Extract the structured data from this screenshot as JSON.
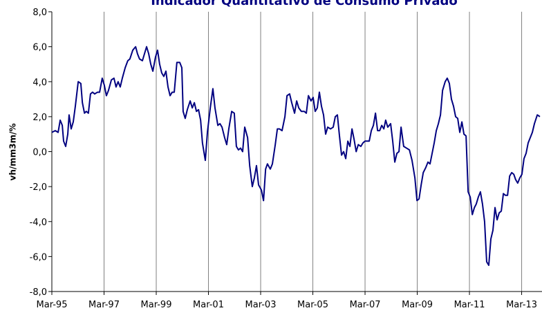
{
  "chart_data": {
    "type": "line",
    "title": "Indicador Quantitativo de Consumo Privado",
    "y_label": "vh/mm3m/%",
    "x": [
      1995.17,
      1995.3,
      1995.41,
      1995.49,
      1995.57,
      1995.62,
      1995.7,
      1995.78,
      1995.83,
      1995.91,
      1995.99,
      1996.07,
      1996.18,
      1996.28,
      1996.34,
      1996.42,
      1996.49,
      1996.57,
      1996.65,
      1996.73,
      1996.81,
      1996.92,
      1997.0,
      1997.1,
      1997.18,
      1997.26,
      1997.34,
      1997.45,
      1997.55,
      1997.63,
      1997.71,
      1997.79,
      1997.87,
      1997.98,
      1998.08,
      1998.16,
      1998.27,
      1998.38,
      1998.45,
      1998.53,
      1998.64,
      1998.72,
      1998.8,
      1998.88,
      1998.96,
      1999.04,
      1999.14,
      1999.22,
      1999.3,
      1999.38,
      1999.46,
      1999.54,
      1999.62,
      1999.7,
      1999.78,
      1999.86,
      1999.96,
      2000.07,
      2000.15,
      2000.2,
      2000.28,
      2000.36,
      2000.47,
      2000.55,
      2000.63,
      2000.71,
      2000.79,
      2000.87,
      2000.94,
      2001.05,
      2001.13,
      2001.24,
      2001.34,
      2001.42,
      2001.53,
      2001.61,
      2001.69,
      2001.79,
      2001.87,
      2001.95,
      2002.06,
      2002.16,
      2002.24,
      2002.32,
      2002.4,
      2002.48,
      2002.56,
      2002.67,
      2002.75,
      2002.85,
      2002.93,
      2003.01,
      2003.09,
      2003.2,
      2003.28,
      2003.36,
      2003.43,
      2003.54,
      2003.62,
      2003.73,
      2003.81,
      2003.89,
      2003.99,
      2004.1,
      2004.18,
      2004.28,
      2004.36,
      2004.47,
      2004.55,
      2004.63,
      2004.73,
      2004.84,
      2004.92,
      2005.0,
      2005.1,
      2005.18,
      2005.26,
      2005.34,
      2005.42,
      2005.5,
      2005.58,
      2005.66,
      2005.74,
      2005.85,
      2005.95,
      2006.03,
      2006.11,
      2006.19,
      2006.27,
      2006.35,
      2006.43,
      2006.51,
      2006.59,
      2006.67,
      2006.75,
      2006.83,
      2006.91,
      2007.01,
      2007.09,
      2007.17,
      2007.25,
      2007.33,
      2007.41,
      2007.49,
      2007.57,
      2007.65,
      2007.73,
      2007.81,
      2007.89,
      2007.96,
      2008.04,
      2008.15,
      2008.23,
      2008.31,
      2008.39,
      2008.47,
      2008.55,
      2008.65,
      2008.76,
      2008.87,
      2008.97,
      2009.08,
      2009.16,
      2009.24,
      2009.32,
      2009.4,
      2009.5,
      2009.58,
      2009.66,
      2009.74,
      2009.82,
      2009.9,
      2009.98,
      2010.06,
      2010.14,
      2010.24,
      2010.32,
      2010.4,
      2010.48,
      2010.56,
      2010.64,
      2010.72,
      2010.8,
      2010.88,
      2010.96,
      2011.04,
      2011.12,
      2011.2,
      2011.28,
      2011.36,
      2011.43,
      2011.51,
      2011.59,
      2011.67,
      2011.75,
      2011.83,
      2011.91,
      2011.99,
      2012.07,
      2012.15,
      2012.23,
      2012.31,
      2012.39,
      2012.47,
      2012.55,
      2012.63,
      2012.71,
      2012.79,
      2012.87,
      2012.94,
      2013.02,
      2013.1,
      2013.18,
      2013.26,
      2013.34,
      2013.42,
      2013.5,
      2013.58,
      2013.66,
      2013.77,
      2013.87
    ],
    "series": [
      {
        "color": "#000080",
        "values": [
          1.1,
          1.2,
          1.1,
          1.8,
          1.5,
          0.6,
          0.3,
          1.0,
          2.1,
          1.3,
          1.7,
          2.6,
          4.0,
          3.9,
          2.8,
          2.2,
          2.3,
          2.2,
          3.3,
          3.4,
          3.3,
          3.4,
          3.4,
          4.2,
          3.8,
          3.2,
          3.5,
          4.1,
          4.2,
          3.7,
          4.0,
          3.7,
          4.2,
          4.8,
          5.2,
          5.3,
          5.8,
          6.0,
          5.6,
          5.3,
          5.2,
          5.6,
          6.0,
          5.6,
          5.0,
          4.6,
          5.4,
          5.8,
          5.0,
          4.5,
          4.3,
          4.6,
          3.7,
          3.2,
          3.4,
          3.4,
          5.1,
          5.1,
          4.8,
          2.3,
          1.9,
          2.4,
          2.9,
          2.5,
          2.8,
          2.3,
          2.4,
          1.8,
          0.5,
          -0.5,
          1.1,
          2.5,
          3.6,
          2.5,
          1.5,
          1.6,
          1.4,
          0.8,
          0.4,
          1.3,
          2.3,
          2.2,
          0.3,
          0.1,
          0.2,
          0.0,
          1.4,
          0.8,
          -0.8,
          -2.0,
          -1.5,
          -0.8,
          -1.9,
          -2.2,
          -2.8,
          -1.0,
          -0.7,
          -1.0,
          -0.7,
          0.4,
          1.3,
          1.3,
          1.2,
          2.0,
          3.2,
          3.3,
          2.8,
          2.2,
          2.9,
          2.5,
          2.3,
          2.3,
          2.2,
          3.2,
          2.9,
          3.1,
          2.3,
          2.5,
          3.4,
          2.6,
          2.1,
          1.0,
          1.4,
          1.3,
          1.4,
          2.0,
          2.1,
          0.9,
          -0.2,
          0.0,
          -0.4,
          0.6,
          0.3,
          1.3,
          0.7,
          0.0,
          0.4,
          0.3,
          0.5,
          0.6,
          0.6,
          0.6,
          1.2,
          1.5,
          2.2,
          1.2,
          1.2,
          1.5,
          1.3,
          1.8,
          1.4,
          1.6,
          0.6,
          -0.6,
          -0.1,
          0.0,
          1.4,
          0.3,
          0.2,
          0.1,
          -0.5,
          -1.5,
          -2.8,
          -2.7,
          -1.9,
          -1.2,
          -0.9,
          -0.6,
          -0.7,
          -0.1,
          0.5,
          1.2,
          1.6,
          2.1,
          3.5,
          4.0,
          4.2,
          3.9,
          3.0,
          2.6,
          2.0,
          1.9,
          1.1,
          1.7,
          1.0,
          0.9,
          -2.3,
          -2.6,
          -3.6,
          -3.2,
          -3.0,
          -2.6,
          -2.3,
          -3.0,
          -4.0,
          -6.3,
          -6.5,
          -5.0,
          -4.5,
          -3.2,
          -3.9,
          -3.5,
          -3.4,
          -2.4,
          -2.5,
          -2.5,
          -1.4,
          -1.2,
          -1.3,
          -1.6,
          -1.8,
          -1.5,
          -1.3,
          -0.4,
          -0.1,
          0.5,
          0.8,
          1.1,
          1.6,
          2.1,
          2.0
        ]
      }
    ],
    "xlim": [
      1995.17,
      2013.95
    ],
    "xticks": [
      {
        "value": 1995.17,
        "label": "Mar-95"
      },
      {
        "value": 1997.17,
        "label": "Mar-97"
      },
      {
        "value": 1999.17,
        "label": "Mar-99"
      },
      {
        "value": 2001.17,
        "label": "Mar-01"
      },
      {
        "value": 2003.17,
        "label": "Mar-03"
      },
      {
        "value": 2005.17,
        "label": "Mar-05"
      },
      {
        "value": 2007.17,
        "label": "Mar-07"
      },
      {
        "value": 2009.17,
        "label": "Mar-09"
      },
      {
        "value": 2011.17,
        "label": "Mar-11"
      },
      {
        "value": 2013.17,
        "label": "Mar-13"
      }
    ],
    "ylim": [
      -8,
      8
    ],
    "yticks": [
      {
        "value": -8,
        "label": "-8,0"
      },
      {
        "value": -6,
        "label": "-6,0"
      },
      {
        "value": -4,
        "label": "-4,0"
      },
      {
        "value": -2,
        "label": "-2,0"
      },
      {
        "value": 0,
        "label": "0,0"
      },
      {
        "value": 2,
        "label": "2,0"
      },
      {
        "value": 4,
        "label": "4,0"
      },
      {
        "value": 6,
        "label": "6,0"
      },
      {
        "value": 8,
        "label": "8,0"
      }
    ],
    "grid": "x"
  }
}
